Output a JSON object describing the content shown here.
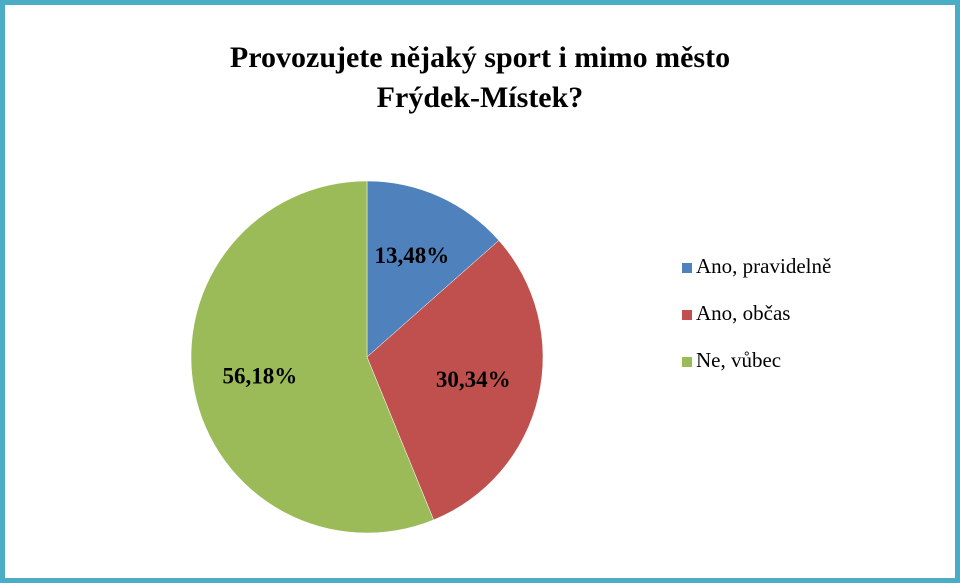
{
  "chart_data": {
    "type": "pie",
    "title": "Provozujete nějaký sport i mimo město Frýdek-Místek?",
    "categories": [
      "Ano, pravidelně",
      "Ano, občas",
      "Ne, vůbec"
    ],
    "values": [
      13.48,
      30.34,
      56.18
    ],
    "value_labels": [
      "13,48%",
      "30,34%",
      "56,18%"
    ],
    "colors": [
      "#4f81bd",
      "#c0504d",
      "#9bbb59"
    ],
    "legend": "right"
  }
}
